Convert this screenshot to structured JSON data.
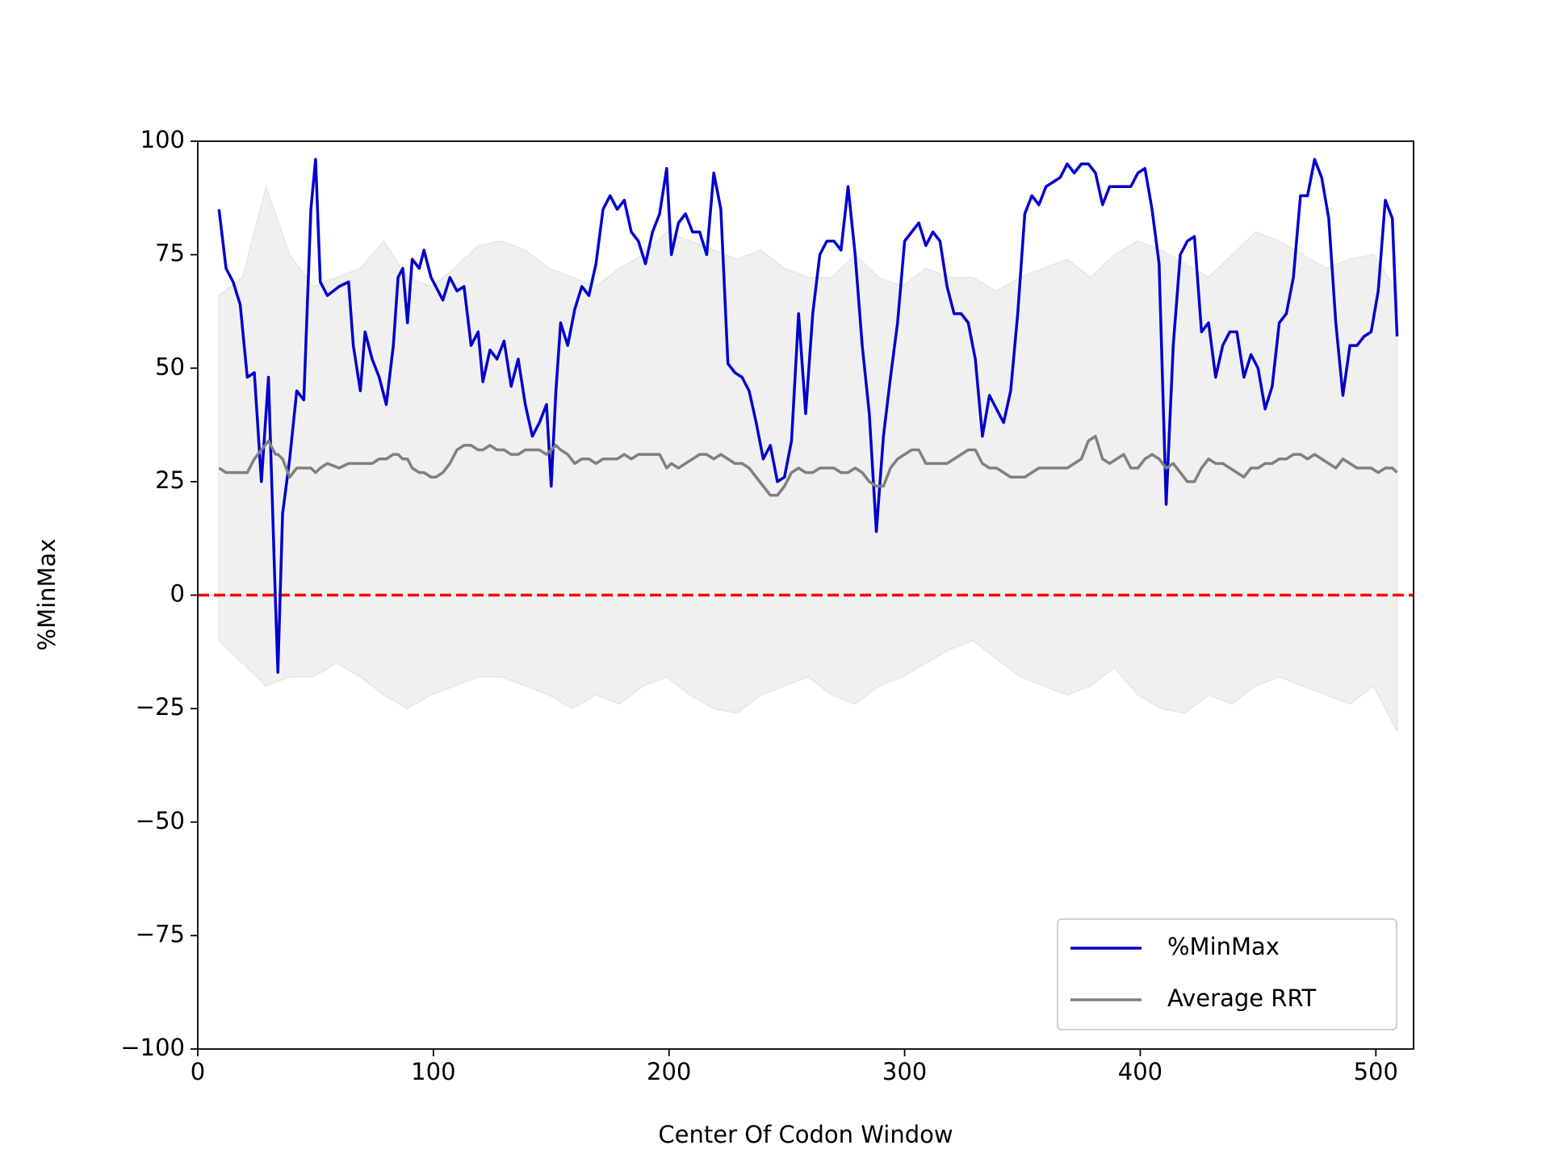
{
  "chart_data": {
    "type": "line",
    "xlabel": "Center Of Codon Window",
    "ylabel": "%MinMax",
    "xlim": [
      0,
      516
    ],
    "ylim": [
      -100,
      100
    ],
    "xticks": [
      0,
      100,
      200,
      300,
      400,
      500
    ],
    "yticks": [
      {
        "value": -100,
        "label": "−100"
      },
      {
        "value": -75,
        "label": "−75"
      },
      {
        "value": -50,
        "label": "−50"
      },
      {
        "value": -25,
        "label": "−25"
      },
      0,
      25,
      50,
      75,
      100
    ],
    "legend": "lower right",
    "reference_line": {
      "value": 0,
      "color": "#ff0000",
      "style": "dashed"
    },
    "band": {
      "color": "#f0f0f0",
      "x": [
        9,
        19,
        29,
        39,
        49,
        59,
        69,
        79,
        89,
        99,
        109,
        119,
        129,
        139,
        149,
        159,
        169,
        179,
        189,
        199,
        209,
        219,
        229,
        239,
        249,
        259,
        269,
        279,
        289,
        299,
        309,
        319,
        329,
        339,
        349,
        359,
        369,
        379,
        389,
        399,
        409,
        419,
        429,
        439,
        449,
        459,
        469,
        479,
        489,
        499,
        509
      ],
      "upper": [
        66,
        70,
        90,
        75,
        68,
        70,
        72,
        78,
        70,
        68,
        72,
        77,
        78,
        76,
        72,
        70,
        68,
        72,
        75,
        80,
        78,
        76,
        74,
        76,
        72,
        70,
        70,
        75,
        70,
        68,
        72,
        70,
        70,
        67,
        70,
        72,
        74,
        70,
        75,
        78,
        76,
        73,
        70,
        75,
        80,
        78,
        75,
        72,
        74,
        75,
        67
      ],
      "lower": [
        -10,
        -15,
        -20,
        -18,
        -18,
        -15,
        -18,
        -22,
        -25,
        -22,
        -20,
        -18,
        -18,
        -20,
        -22,
        -25,
        -22,
        -24,
        -20,
        -18,
        -22,
        -25,
        -26,
        -22,
        -20,
        -18,
        -22,
        -24,
        -20,
        -18,
        -15,
        -12,
        -10,
        -14,
        -18,
        -20,
        -22,
        -20,
        -16,
        -22,
        -25,
        -26,
        -22,
        -24,
        -20,
        -18,
        -20,
        -22,
        -24,
        -20,
        -30
      ]
    },
    "x": [
      9,
      12,
      15,
      18,
      21,
      24,
      27,
      30,
      33,
      34,
      36,
      39,
      42,
      45,
      48,
      50,
      52,
      55,
      60,
      64,
      66,
      69,
      71,
      74,
      77,
      80,
      83,
      85,
      87,
      89,
      91,
      94,
      96,
      99,
      101,
      104,
      107,
      110,
      113,
      116,
      119,
      121,
      124,
      127,
      130,
      133,
      136,
      139,
      142,
      145,
      148,
      150,
      152,
      154,
      157,
      160,
      163,
      166,
      169,
      172,
      175,
      178,
      181,
      184,
      187,
      190,
      193,
      196,
      199,
      201,
      204,
      207,
      210,
      213,
      216,
      219,
      222,
      225,
      228,
      231,
      234,
      237,
      240,
      243,
      246,
      249,
      252,
      255,
      258,
      261,
      264,
      267,
      270,
      273,
      276,
      279,
      282,
      285,
      288,
      291,
      294,
      297,
      300,
      303,
      306,
      309,
      312,
      315,
      318,
      321,
      324,
      327,
      330,
      333,
      336,
      339,
      342,
      345,
      348,
      351,
      354,
      357,
      360,
      363,
      366,
      369,
      372,
      375,
      378,
      381,
      384,
      387,
      390,
      393,
      396,
      399,
      402,
      405,
      408,
      411,
      414,
      417,
      420,
      423,
      426,
      429,
      432,
      435,
      438,
      441,
      444,
      447,
      450,
      453,
      456,
      459,
      462,
      465,
      468,
      471,
      474,
      477,
      480,
      483,
      486,
      489,
      492,
      495,
      498,
      501,
      504,
      507,
      509
    ],
    "series": [
      {
        "name": "%MinMax",
        "color": "#0000cd",
        "values": [
          85,
          72,
          69,
          64,
          48,
          49,
          25,
          48,
          -2,
          -17,
          18,
          30,
          45,
          43,
          85,
          96,
          69,
          66,
          68,
          69,
          55,
          45,
          58,
          52,
          48,
          42,
          55,
          70,
          72,
          60,
          74,
          72,
          76,
          70,
          68,
          65,
          70,
          67,
          68,
          55,
          58,
          47,
          54,
          52,
          56,
          46,
          52,
          42,
          35,
          38,
          42,
          24,
          45,
          60,
          55,
          63,
          68,
          66,
          73,
          85,
          88,
          85,
          87,
          80,
          78,
          73,
          80,
          84,
          94,
          75,
          82,
          84,
          80,
          80,
          75,
          93,
          85,
          51,
          49,
          48,
          45,
          38,
          30,
          33,
          25,
          26,
          34,
          62,
          40,
          62,
          75,
          78,
          78,
          76,
          90,
          75,
          55,
          40,
          14,
          35,
          48,
          60,
          78,
          80,
          82,
          77,
          80,
          78,
          68,
          62,
          62,
          60,
          52,
          35,
          44,
          41,
          38,
          45,
          62,
          84,
          88,
          86,
          90,
          91,
          92,
          95,
          93,
          95,
          95,
          93,
          86,
          90,
          90,
          90,
          90,
          93,
          94,
          85,
          73,
          20,
          55,
          75,
          78,
          79,
          58,
          60,
          48,
          55,
          58,
          58,
          48,
          53,
          50,
          41,
          46,
          60,
          62,
          70,
          88,
          88,
          96,
          92,
          83,
          60,
          44,
          55,
          55,
          57,
          58,
          67,
          87,
          83,
          57
        ]
      },
      {
        "name": "Average RRT",
        "color": "#808080",
        "values": [
          28,
          27,
          27,
          27,
          27,
          30,
          32,
          34,
          31,
          31,
          30,
          26,
          28,
          28,
          28,
          27,
          28,
          29,
          28,
          29,
          29,
          29,
          29,
          29,
          30,
          30,
          31,
          31,
          30,
          30,
          28,
          27,
          27,
          26,
          26,
          27,
          29,
          32,
          33,
          33,
          32,
          32,
          33,
          32,
          32,
          31,
          31,
          32,
          32,
          32,
          31,
          32,
          33,
          32,
          31,
          29,
          30,
          30,
          29,
          30,
          30,
          30,
          31,
          30,
          31,
          31,
          31,
          31,
          28,
          29,
          28,
          29,
          30,
          31,
          31,
          30,
          31,
          30,
          29,
          29,
          28,
          26,
          24,
          22,
          22,
          24,
          27,
          28,
          27,
          27,
          28,
          28,
          28,
          27,
          27,
          28,
          27,
          25,
          24,
          24,
          28,
          30,
          31,
          32,
          32,
          29,
          29,
          29,
          29,
          30,
          31,
          32,
          32,
          29,
          28,
          28,
          27,
          26,
          26,
          26,
          27,
          28,
          28,
          28,
          28,
          28,
          29,
          30,
          34,
          35,
          30,
          29,
          30,
          31,
          28,
          28,
          30,
          31,
          30,
          28,
          29,
          27,
          25,
          25,
          28,
          30,
          29,
          29,
          28,
          27,
          26,
          28,
          28,
          29,
          29,
          30,
          30,
          31,
          31,
          30,
          31,
          30,
          29,
          28,
          30,
          29,
          28,
          28,
          28,
          27,
          28,
          28,
          27
        ]
      }
    ]
  }
}
